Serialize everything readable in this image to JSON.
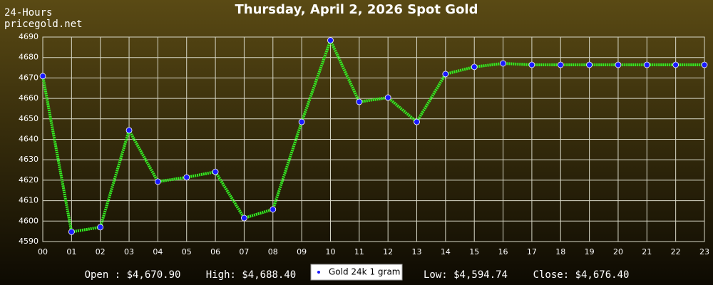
{
  "chart_data": {
    "type": "line",
    "title": "Thursday, April 2, 2026 Spot Gold",
    "corner_text": [
      "24-Hours",
      "pricegold.net"
    ],
    "categories": [
      "00",
      "01",
      "02",
      "03",
      "04",
      "05",
      "06",
      "07",
      "08",
      "09",
      "10",
      "11",
      "12",
      "13",
      "14",
      "15",
      "16",
      "17",
      "18",
      "19",
      "20",
      "21",
      "22",
      "23"
    ],
    "series": [
      {
        "name": "Gold 24k 1 gram",
        "color": "#33ee22",
        "marker_color": "#1a1aff",
        "values": [
          4670.9,
          4594.74,
          4597,
          4644.4,
          4619.3,
          4621.4,
          4624.1,
          4601.5,
          4605.7,
          4648.5,
          4688.4,
          4658.3,
          4660.4,
          4648.5,
          4671.9,
          4675.4,
          4677.1,
          4676.4,
          4676.4,
          4676.4,
          4676.4,
          4676.4,
          4676.4,
          4676.4
        ]
      }
    ],
    "ylim": [
      4590,
      4690
    ],
    "yticks": [
      4590,
      4600,
      4610,
      4620,
      4630,
      4640,
      4650,
      4660,
      4670,
      4680,
      4690
    ],
    "grid": true,
    "stats": [
      "Open : $4,670.90",
      "High: $4,688.40",
      "Low: $4,594.74",
      "Close: $4,676.40"
    ]
  }
}
